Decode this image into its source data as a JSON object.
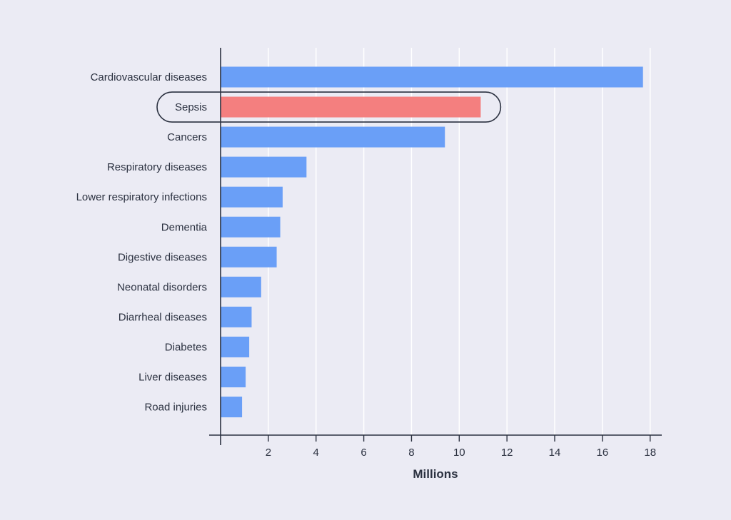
{
  "chart_data": {
    "type": "bar",
    "orientation": "horizontal",
    "title": "",
    "xlabel": "Millions",
    "ylabel": "",
    "xlim": [
      0,
      18.5
    ],
    "xticks": [
      2,
      4,
      6,
      8,
      10,
      12,
      14,
      16,
      18
    ],
    "grid": true,
    "categories": [
      "Cardiovascular diseases",
      "Sepsis",
      "Cancers",
      "Respiratory diseases",
      "Lower respiratory infections",
      "Dementia",
      "Digestive diseases",
      "Neonatal disorders",
      "Diarrheal diseases",
      "Diabetes",
      "Liver diseases",
      "Road injuries"
    ],
    "values": [
      17.7,
      10.9,
      9.4,
      3.6,
      2.6,
      2.5,
      2.35,
      1.7,
      1.3,
      1.2,
      1.05,
      0.9
    ],
    "highlight": "Sepsis",
    "colors": {
      "bar": "#6a9ff7",
      "highlight_bar": "#f47f7f",
      "axis": "#2b3140",
      "grid": "#ffffff",
      "background": "#ebebf4"
    }
  }
}
